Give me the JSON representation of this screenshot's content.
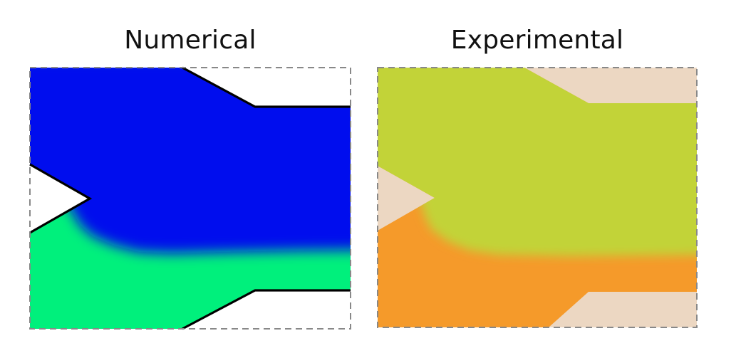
{
  "panels": [
    {
      "title": "Numerical",
      "colors": {
        "upper_stream": "#0008ee",
        "lower_stream": "#00f07c",
        "wall": "#000000",
        "border": "#888888"
      }
    },
    {
      "title": "Experimental",
      "colors": {
        "upper_stream": "#c2d338",
        "lower_stream": "#f59a2a",
        "background": "#ecd7c2",
        "border": "#888888"
      }
    }
  ]
}
